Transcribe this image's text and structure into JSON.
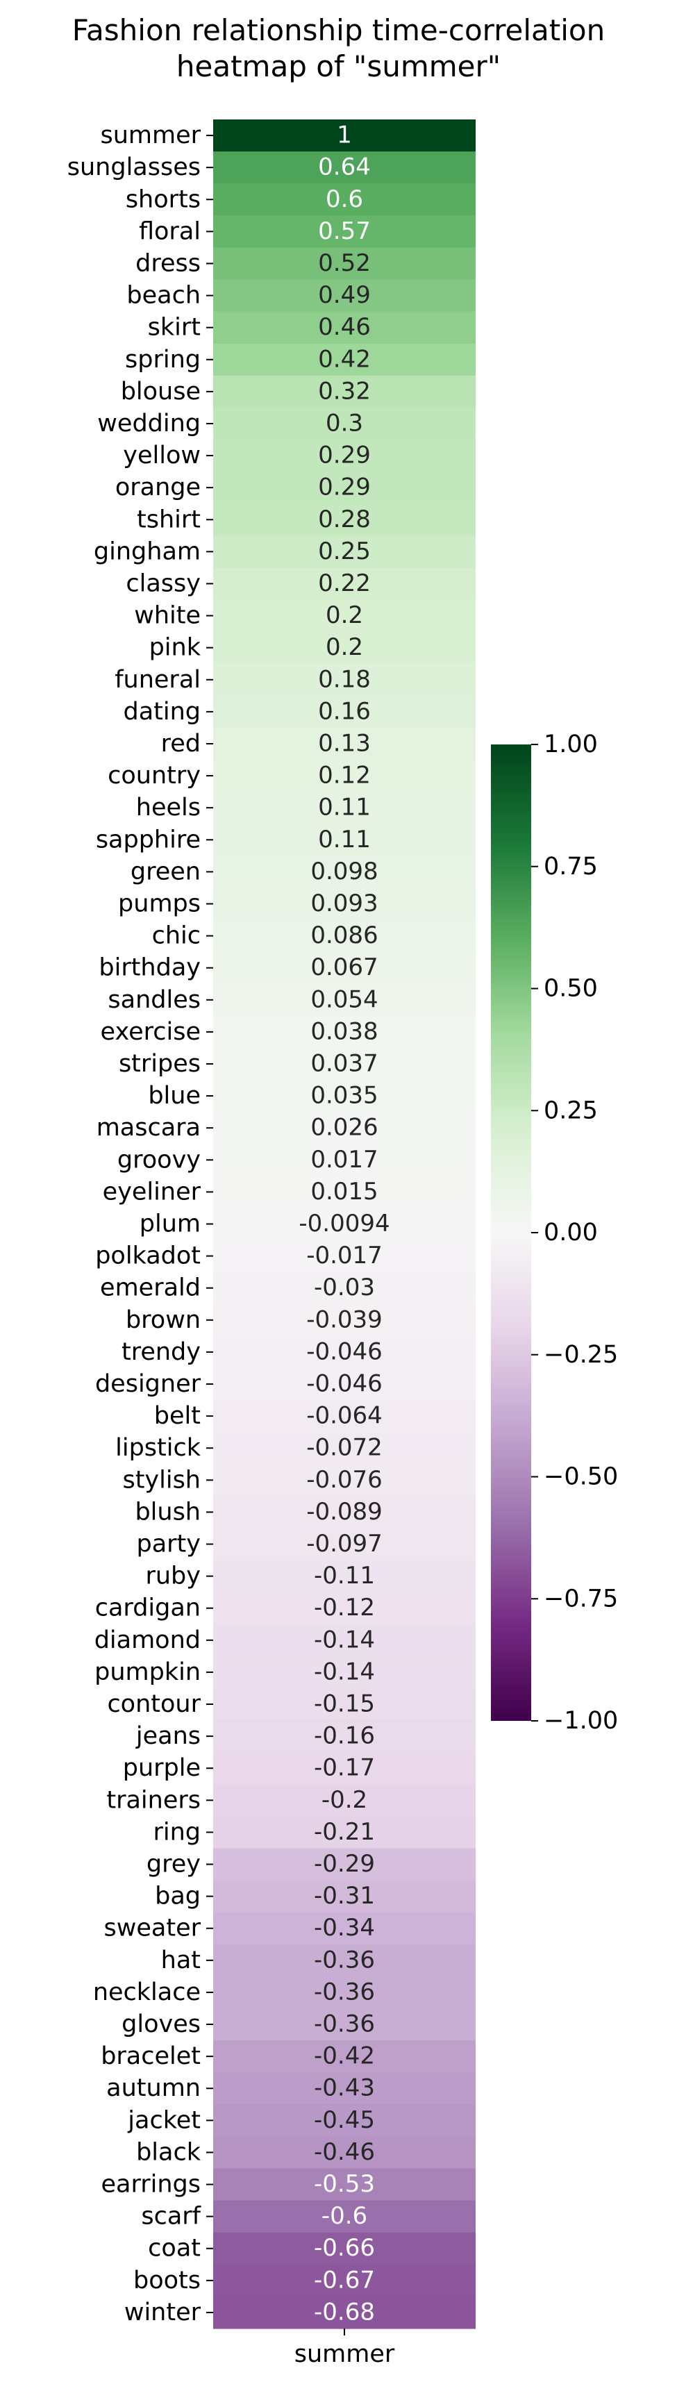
{
  "chart_data": {
    "type": "heatmap",
    "title": "Fashion relationship time-correlation\nheatmap of \"summer\"",
    "x_categories": [
      "summer"
    ],
    "y_categories": [
      "summer",
      "sunglasses",
      "shorts",
      "floral",
      "dress",
      "beach",
      "skirt",
      "spring",
      "blouse",
      "wedding",
      "yellow",
      "orange",
      "tshirt",
      "gingham",
      "classy",
      "white",
      "pink",
      "funeral",
      "dating",
      "red",
      "country",
      "heels",
      "sapphire",
      "green",
      "pumps",
      "chic",
      "birthday",
      "sandles",
      "exercise",
      "stripes",
      "blue",
      "mascara",
      "groovy",
      "eyeliner",
      "plum",
      "polkadot",
      "emerald",
      "brown",
      "trendy",
      "designer",
      "belt",
      "lipstick",
      "stylish",
      "blush",
      "party",
      "ruby",
      "cardigan",
      "diamond",
      "pumpkin",
      "contour",
      "jeans",
      "purple",
      "trainers",
      "ring",
      "grey",
      "bag",
      "sweater",
      "hat",
      "necklace",
      "gloves",
      "bracelet",
      "autumn",
      "jacket",
      "black",
      "earrings",
      "scarf",
      "coat",
      "boots",
      "winter"
    ],
    "values": [
      1,
      0.64,
      0.6,
      0.57,
      0.52,
      0.49,
      0.46,
      0.42,
      0.32,
      0.3,
      0.29,
      0.29,
      0.28,
      0.25,
      0.22,
      0.2,
      0.2,
      0.18,
      0.16,
      0.13,
      0.12,
      0.11,
      0.11,
      0.098,
      0.093,
      0.086,
      0.067,
      0.054,
      0.038,
      0.037,
      0.035,
      0.026,
      0.017,
      0.015,
      -0.0094,
      -0.017,
      -0.03,
      -0.039,
      -0.046,
      -0.046,
      -0.064,
      -0.072,
      -0.076,
      -0.089,
      -0.097,
      -0.11,
      -0.12,
      -0.14,
      -0.14,
      -0.15,
      -0.16,
      -0.17,
      -0.2,
      -0.21,
      -0.29,
      -0.31,
      -0.34,
      -0.36,
      -0.36,
      -0.36,
      -0.42,
      -0.43,
      -0.45,
      -0.46,
      -0.53,
      -0.6,
      -0.66,
      -0.67,
      -0.68
    ],
    "labels": [
      "1",
      "0.64",
      "0.6",
      "0.57",
      "0.52",
      "0.49",
      "0.46",
      "0.42",
      "0.32",
      "0.3",
      "0.29",
      "0.29",
      "0.28",
      "0.25",
      "0.22",
      "0.2",
      "0.2",
      "0.18",
      "0.16",
      "0.13",
      "0.12",
      "0.11",
      "0.11",
      "0.098",
      "0.093",
      "0.086",
      "0.067",
      "0.054",
      "0.038",
      "0.037",
      "0.035",
      "0.026",
      "0.017",
      "0.015",
      "-0.0094",
      "-0.017",
      "-0.03",
      "-0.039",
      "-0.046",
      "-0.046",
      "-0.064",
      "-0.072",
      "-0.076",
      "-0.089",
      "-0.097",
      "-0.11",
      "-0.12",
      "-0.14",
      "-0.14",
      "-0.15",
      "-0.16",
      "-0.17",
      "-0.2",
      "-0.21",
      "-0.29",
      "-0.31",
      "-0.34",
      "-0.36",
      "-0.36",
      "-0.36",
      "-0.42",
      "-0.43",
      "-0.45",
      "-0.46",
      "-0.53",
      "-0.6",
      "-0.66",
      "-0.67",
      "-0.68"
    ],
    "colormap": "PRGn",
    "vmin": -1.0,
    "vmax": 1.0,
    "colorbar_ticks": [
      1.0,
      0.75,
      0.5,
      0.25,
      0.0,
      -0.25,
      -0.5,
      -0.75,
      -1.0
    ],
    "colorbar_tick_labels": [
      "1.00",
      "0.75",
      "0.50",
      "0.25",
      "0.00",
      "−0.25",
      "−0.50",
      "−0.75",
      "−1.00"
    ],
    "colorbar_position": "right"
  }
}
